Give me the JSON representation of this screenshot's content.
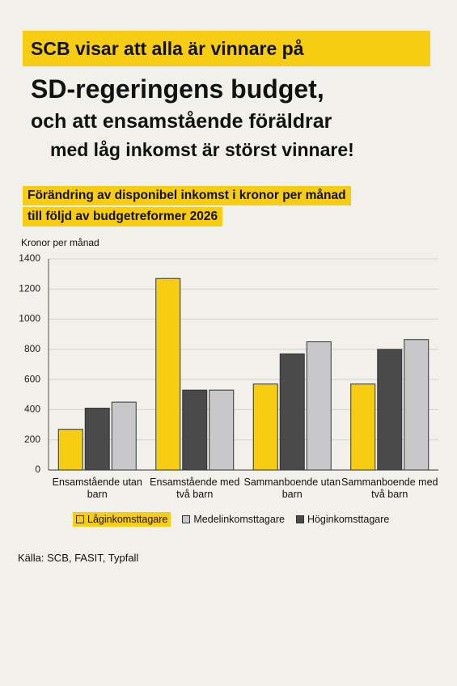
{
  "chart_data": {
    "type": "bar",
    "title": [
      "SCB visar att alla är vinnare på",
      "SD-regeringens budget,",
      "och att ensamstående föräldrar",
      "med låg inkomst är störst vinnare!"
    ],
    "subtitle": [
      "Förändring av disponibel inkomst i kronor per månad",
      "till följd av budgetreformer 2026"
    ],
    "y_label": "Kronor per månad",
    "categories": [
      "Ensamstående utan barn",
      "Ensamstående med två barn",
      "Sammanboende utan barn",
      "Sammanboende med två barn"
    ],
    "series": [
      {
        "name": "Låginkomsttagare",
        "color": "#f7cd14",
        "values": [
          270,
          1270,
          570,
          570
        ]
      },
      {
        "name": "Höginkomsttagare",
        "color": "#4a4a4a",
        "values": [
          410,
          530,
          770,
          800
        ]
      },
      {
        "name": "Medelinkomsttagare",
        "color": "#c8c8ca",
        "values": [
          450,
          530,
          850,
          865
        ]
      }
    ],
    "ylim": [
      0,
      1400
    ],
    "yticks": [
      0,
      200,
      400,
      600,
      800,
      1000,
      1200,
      1400
    ],
    "grid": true,
    "source": "Källa: SCB, FASIT, Typfall"
  }
}
